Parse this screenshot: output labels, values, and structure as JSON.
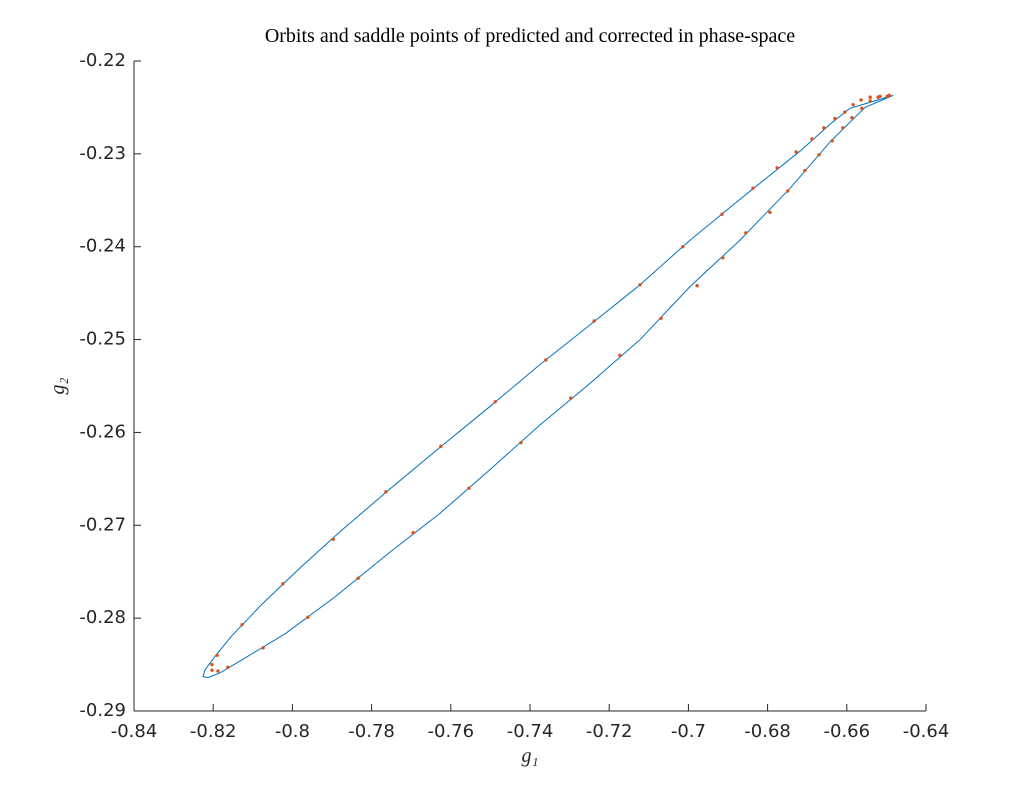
{
  "chart_data": {
    "type": "line",
    "title": "Orbits and saddle points of predicted and corrected in phase-space",
    "xlabel": "g₁",
    "ylabel": "g₂",
    "xlim": [
      -0.84,
      -0.64
    ],
    "ylim": [
      -0.29,
      -0.22
    ],
    "xticks": [
      -0.84,
      -0.82,
      -0.8,
      -0.78,
      -0.76,
      -0.74,
      -0.72,
      -0.7,
      -0.68,
      -0.66,
      -0.64
    ],
    "yticks": [
      -0.29,
      -0.28,
      -0.27,
      -0.26,
      -0.25,
      -0.24,
      -0.23,
      -0.22
    ],
    "grid": false,
    "series": [
      {
        "style": "line",
        "color": "#0072bd",
        "x": [
          -0.6483,
          -0.6592,
          -0.6642,
          -0.6718,
          -0.687,
          -0.6996,
          -0.7122,
          -0.7248,
          -0.7375,
          -0.7501,
          -0.7627,
          -0.7754,
          -0.788,
          -0.7981,
          -0.8077,
          -0.8153,
          -0.8195,
          -0.8221,
          -0.8226,
          -0.8213,
          -0.8183,
          -0.812,
          -0.8019,
          -0.7892,
          -0.7754,
          -0.7627,
          -0.7501,
          -0.7375,
          -0.7248,
          -0.7122,
          -0.6996,
          -0.687,
          -0.6743,
          -0.6642,
          -0.6554,
          -0.6483
        ],
        "values": [
          -0.2237,
          -0.2251,
          -0.2268,
          -0.2297,
          -0.2349,
          -0.2393,
          -0.2441,
          -0.2484,
          -0.2527,
          -0.2572,
          -0.2616,
          -0.2661,
          -0.2707,
          -0.2746,
          -0.2785,
          -0.2819,
          -0.2841,
          -0.2856,
          -0.2863,
          -0.2864,
          -0.2859,
          -0.2843,
          -0.2817,
          -0.2777,
          -0.2729,
          -0.2687,
          -0.264,
          -0.2592,
          -0.2547,
          -0.25,
          -0.2443,
          -0.2393,
          -0.2337,
          -0.2287,
          -0.225,
          -0.2237
        ]
      },
      {
        "style": "markers",
        "color": "#d95319",
        "x": [
          -0.819,
          -0.8127,
          -0.8024,
          -0.7897,
          -0.7764,
          -0.7625,
          -0.7488,
          -0.736,
          -0.7238,
          -0.7122,
          -0.7014,
          -0.6915,
          -0.6837,
          -0.6776,
          -0.6728,
          -0.6688,
          -0.6658,
          -0.663,
          -0.6605,
          -0.6584,
          -0.6564,
          -0.6541,
          -0.6516,
          -0.6493,
          -0.8203,
          -0.8203,
          -0.8188,
          -0.8163,
          -0.8074,
          -0.7961,
          -0.7834,
          -0.7695,
          -0.7554,
          -0.7423,
          -0.7297,
          -0.7173,
          -0.7069,
          -0.6978,
          -0.6913,
          -0.6855,
          -0.6794,
          -0.6749,
          -0.6706,
          -0.667,
          -0.6637,
          -0.661,
          -0.6587,
          -0.6562,
          -0.6541,
          -0.6521,
          -0.6498
        ],
        "values": [
          -0.284,
          -0.2807,
          -0.2763,
          -0.2715,
          -0.2664,
          -0.2615,
          -0.2567,
          -0.2522,
          -0.248,
          -0.2441,
          -0.24,
          -0.2365,
          -0.2337,
          -0.2315,
          -0.2298,
          -0.2284,
          -0.2272,
          -0.2262,
          -0.2255,
          -0.2247,
          -0.2242,
          -0.2239,
          -0.2238,
          -0.2237,
          -0.285,
          -0.2856,
          -0.2857,
          -0.2853,
          -0.2832,
          -0.2799,
          -0.2757,
          -0.2708,
          -0.266,
          -0.2611,
          -0.2563,
          -0.2517,
          -0.2477,
          -0.2442,
          -0.2412,
          -0.2385,
          -0.2363,
          -0.234,
          -0.2318,
          -0.2301,
          -0.2286,
          -0.2272,
          -0.2261,
          -0.2251,
          -0.2243,
          -0.2239,
          -0.2238
        ]
      }
    ]
  }
}
